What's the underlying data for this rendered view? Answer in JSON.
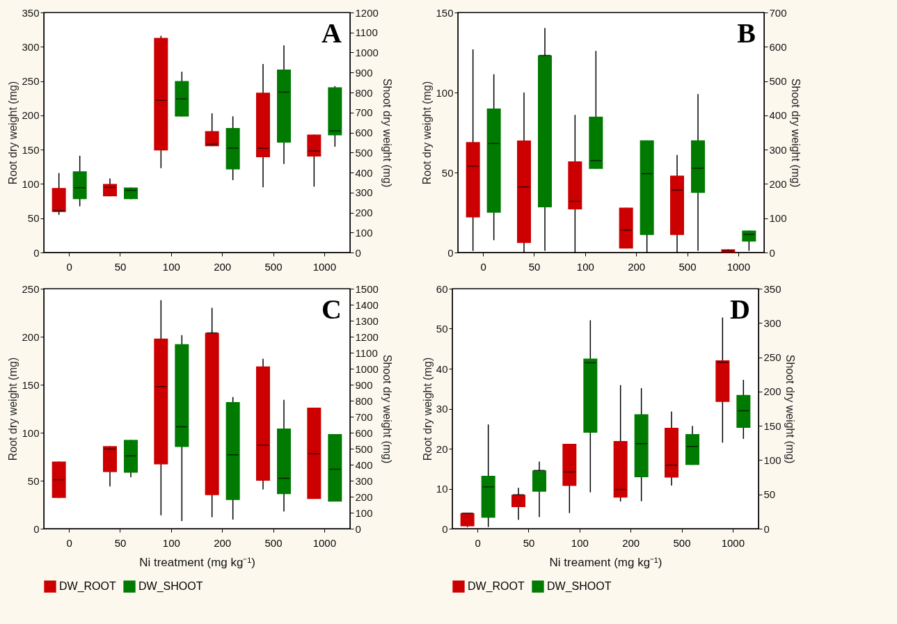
{
  "chart_data": [
    {
      "type": "box",
      "title": "A",
      "ylabel": "Root dry weight (mg)",
      "y2label": "Shoot dry weight (mg)",
      "categories": [
        "0",
        "50",
        "100",
        "200",
        "500",
        "1000"
      ],
      "ylim": [
        0,
        350
      ],
      "yticks": [
        0,
        50,
        100,
        150,
        200,
        250,
        300,
        350
      ],
      "y2lim": [
        0,
        1200
      ],
      "y2ticks": [
        0,
        100,
        200,
        300,
        400,
        500,
        600,
        700,
        800,
        900,
        1000,
        1100,
        1200
      ],
      "series": [
        {
          "color": "#cc0000",
          "boxes": [
            {
              "low": 55,
              "q1": 59,
              "median": 61,
              "q3": 94,
              "high": 116
            },
            {
              "low": 82,
              "q1": 82,
              "median": 95,
              "q3": 100,
              "high": 108
            },
            {
              "low": 123,
              "q1": 149,
              "median": 222,
              "q3": 313,
              "high": 316
            },
            {
              "low": 155,
              "q1": 155,
              "median": 158,
              "q3": 177,
              "high": 203
            },
            {
              "low": 95,
              "q1": 139,
              "median": 152,
              "q3": 233,
              "high": 275
            },
            {
              "low": 96,
              "q1": 140,
              "median": 148,
              "q3": 172,
              "high": 172
            }
          ]
        },
        {
          "color": "#007a00",
          "axis": "y2",
          "boxes": [
            {
              "low": 231,
              "q1": 267,
              "median": 324,
              "q3": 406,
              "high": 484
            },
            {
              "low": 267,
              "q1": 267,
              "median": 311,
              "q3": 325,
              "high": 325
            },
            {
              "low": 680,
              "q1": 680,
              "median": 768,
              "q3": 857,
              "high": 904
            },
            {
              "low": 362,
              "q1": 416,
              "median": 522,
              "q3": 623,
              "high": 681
            },
            {
              "low": 443,
              "q1": 550,
              "median": 802,
              "q3": 915,
              "high": 1036
            },
            {
              "low": 529,
              "q1": 586,
              "median": 608,
              "q3": 826,
              "high": 832
            }
          ]
        }
      ]
    },
    {
      "type": "box",
      "title": "B",
      "ylabel": "Root dry weight (mg)",
      "y2label": "Shoot dry weight (mg)",
      "categories": [
        "0",
        "50",
        "100",
        "200",
        "500",
        "1000"
      ],
      "ylim": [
        0,
        150
      ],
      "yticks": [
        0,
        50,
        100,
        150
      ],
      "y2lim": [
        0,
        700
      ],
      "y2ticks": [
        0,
        100,
        200,
        300,
        400,
        500,
        600,
        700
      ],
      "series": [
        {
          "color": "#cc0000",
          "boxes": [
            {
              "low": 1,
              "q1": 22,
              "median": 54,
              "q3": 69,
              "high": 127
            },
            {
              "low": 0,
              "q1": 6,
              "median": 41,
              "q3": 70,
              "high": 100
            },
            {
              "low": 0,
              "q1": 27,
              "median": 32,
              "q3": 57,
              "high": 86
            },
            {
              "low": 2.5,
              "q1": 2.5,
              "median": 14,
              "q3": 28,
              "high": 28
            },
            {
              "low": 0,
              "q1": 11,
              "median": 39,
              "q3": 48,
              "high": 61
            },
            {
              "low": 0,
              "q1": 0,
              "median": 1,
              "q3": 2,
              "high": 2
            }
          ]
        },
        {
          "color": "#007a00",
          "axis": "y2",
          "boxes": [
            {
              "low": 36,
              "q1": 116,
              "median": 318,
              "q3": 420,
              "high": 520
            },
            {
              "low": 5,
              "q1": 132,
              "median": 575,
              "q3": 575,
              "high": 655
            },
            {
              "low": 244,
              "q1": 244,
              "median": 268,
              "q3": 396,
              "high": 588
            },
            {
              "low": 0,
              "q1": 51,
              "median": 230,
              "q3": 327,
              "high": 327
            },
            {
              "low": 5,
              "q1": 174,
              "median": 246,
              "q3": 327,
              "high": 462
            },
            {
              "low": 5,
              "q1": 32,
              "median": 53,
              "q3": 64,
              "high": 64
            }
          ]
        }
      ]
    },
    {
      "type": "box",
      "title": "C",
      "xlabel": "Ni treatment (mg kg⁻¹)",
      "ylabel": "Root dry weight (mg)",
      "y2label": "Shoot dry weight (mg)",
      "categories": [
        "0",
        "50",
        "100",
        "200",
        "500",
        "1000"
      ],
      "ylim": [
        0,
        250
      ],
      "yticks": [
        0,
        50,
        100,
        150,
        200,
        250
      ],
      "y2lim": [
        0,
        1500
      ],
      "y2ticks": [
        0,
        100,
        200,
        300,
        400,
        500,
        600,
        700,
        800,
        900,
        1000,
        1100,
        1200,
        1300,
        1400,
        1500
      ],
      "legend": "bottom",
      "series": [
        {
          "name": "DW_ROOT",
          "color": "#cc0000",
          "boxes": [
            {
              "low": 32,
              "q1": 32,
              "median": 51,
              "q3": 70,
              "high": 70
            },
            {
              "low": 44,
              "q1": 59,
              "median": 83,
              "q3": 86,
              "high": 86
            },
            {
              "low": 14,
              "q1": 67,
              "median": 148,
              "q3": 198,
              "high": 238
            },
            {
              "low": 12,
              "q1": 35,
              "median": 204,
              "q3": 204,
              "high": 230
            },
            {
              "low": 41,
              "q1": 50,
              "median": 87,
              "q3": 169,
              "high": 177
            },
            {
              "low": 31,
              "q1": 31,
              "median": 78,
              "q3": 126,
              "high": 126
            }
          ]
        },
        {
          "name": "DW_SHOOT",
          "color": "#007a00",
          "axis": "y2",
          "boxes": [
            null,
            {
              "low": 322,
              "q1": 350,
              "median": 455,
              "q3": 555,
              "high": 555
            },
            {
              "low": 48,
              "q1": 511,
              "median": 637,
              "q3": 1153,
              "high": 1210
            },
            {
              "low": 57,
              "q1": 179,
              "median": 462,
              "q3": 791,
              "high": 823
            },
            {
              "low": 108,
              "q1": 216,
              "median": 315,
              "q3": 626,
              "high": 805
            },
            {
              "low": 170,
              "q1": 170,
              "median": 372,
              "q3": 591,
              "high": 591
            }
          ]
        }
      ]
    },
    {
      "type": "box",
      "title": "D",
      "xlabel": "Ni treament (mg kg⁻¹)",
      "ylabel": "Root dry weight (mg)",
      "y2label": "Shoot dry weight (mg)",
      "categories": [
        "0",
        "50",
        "100",
        "200",
        "500",
        "1000"
      ],
      "ylim": [
        0,
        60
      ],
      "yticks": [
        0,
        10,
        20,
        30,
        40,
        50,
        60
      ],
      "y2lim": [
        0,
        350
      ],
      "y2ticks": [
        0,
        50,
        100,
        150,
        200,
        250,
        300,
        350
      ],
      "legend": "bottom",
      "series": [
        {
          "name": "DW_ROOT",
          "color": "#cc0000",
          "boxes": [
            {
              "low": 0.4,
              "q1": 0.6,
              "median": 3.9,
              "q3": 3.9,
              "high": 3.9
            },
            {
              "low": 2.2,
              "q1": 5.4,
              "median": 8.5,
              "q3": 8.5,
              "high": 10.2
            },
            {
              "low": 3.9,
              "q1": 10.7,
              "median": 14.2,
              "q3": 21.2,
              "high": 21.2
            },
            {
              "low": 6.8,
              "q1": 7.8,
              "median": 9.8,
              "q3": 21.9,
              "high": 35.9
            },
            {
              "low": 10.8,
              "q1": 12.8,
              "median": 15.9,
              "q3": 25.2,
              "high": 29.3
            },
            {
              "low": 21.5,
              "q1": 31.7,
              "median": 41.6,
              "q3": 42.1,
              "high": 52.8
            }
          ]
        },
        {
          "name": "DW_SHOOT",
          "color": "#007a00",
          "axis": "y2",
          "boxes": [
            {
              "low": 2.5,
              "q1": 16,
              "median": 61,
              "q3": 77,
              "high": 152
            },
            {
              "low": 17,
              "q1": 54,
              "median": 85,
              "q3": 85,
              "high": 98
            },
            {
              "low": 53,
              "q1": 140,
              "median": 242,
              "q3": 248,
              "high": 304
            },
            {
              "low": 40,
              "q1": 75,
              "median": 124,
              "q3": 167,
              "high": 205
            },
            {
              "low": 93,
              "q1": 93,
              "median": 120,
              "q3": 138,
              "high": 150
            },
            {
              "low": 131,
              "q1": 147,
              "median": 172,
              "q3": 195,
              "high": 217
            }
          ]
        }
      ]
    }
  ]
}
